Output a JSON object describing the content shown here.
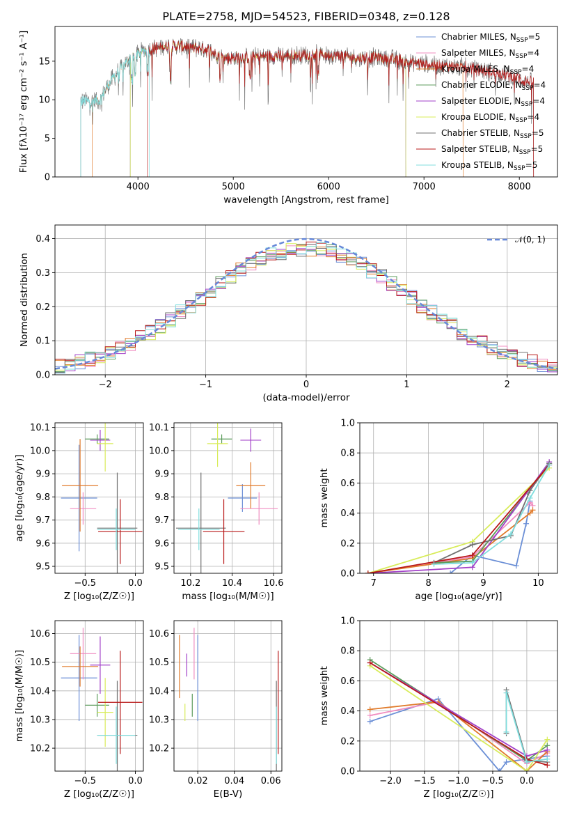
{
  "figure_title": "PLATE=2758, MJD=54523, FIBERID=0348, z=0.128",
  "colors": {
    "Chabrier MILES": "#6b8fd6",
    "Salpeter MILES": "#f08cc0",
    "Kroupa MILES": "#e07a2a",
    "Chabrier ELODIE": "#5c9c5c",
    "Salpeter ELODIE": "#a240c8",
    "Kroupa ELODIE": "#d8ec5a",
    "Chabrier STELIB": "#707070",
    "Salpeter STELIB": "#b81818",
    "Kroupa STELIB": "#80dede"
  },
  "legend_labels": [
    {
      "name": "Chabrier MILES",
      "n": "5"
    },
    {
      "name": "Salpeter MILES",
      "n": "4"
    },
    {
      "name": "Kroupa MILES",
      "n": "4"
    },
    {
      "name": "Chabrier ELODIE",
      "n": "4"
    },
    {
      "name": "Salpeter ELODIE",
      "n": "4"
    },
    {
      "name": "Kroupa ELODIE",
      "n": "4"
    },
    {
      "name": "Chabrier STELIB",
      "n": "5"
    },
    {
      "name": "Salpeter STELIB",
      "n": "5"
    },
    {
      "name": "Kroupa STELIB",
      "n": "5"
    }
  ],
  "chart_data": [
    {
      "id": "spectrum",
      "type": "line",
      "title": "PLATE=2758, MJD=54523, FIBERID=0348, z=0.128",
      "xlabel": "wavelength [Angstrom, rest frame]",
      "ylabel": "Flux [fλ10⁻¹⁷ erg cm⁻² s⁻¹ A⁻¹]",
      "xlim": [
        3130,
        8400
      ],
      "ylim": [
        0,
        19.5
      ],
      "xticks": [
        4000,
        5000,
        6000,
        7000,
        8000
      ],
      "yticks": [
        0,
        5,
        10,
        15
      ],
      "grid": false,
      "legend": "top-right",
      "continuum": [
        [
          3400,
          9.8
        ],
        [
          3600,
          9.9
        ],
        [
          3700,
          12.2
        ],
        [
          3900,
          15.2
        ],
        [
          4050,
          16.3
        ],
        [
          4300,
          17.0
        ],
        [
          4500,
          16.9
        ],
        [
          4700,
          16.6
        ],
        [
          4900,
          15.4
        ],
        [
          5100,
          15.5
        ],
        [
          5300,
          15.6
        ],
        [
          5500,
          15.7
        ],
        [
          5700,
          15.8
        ],
        [
          5900,
          15.9
        ],
        [
          6100,
          15.7
        ],
        [
          6300,
          15.4
        ],
        [
          6500,
          15.5
        ],
        [
          6700,
          15.2
        ],
        [
          6900,
          14.8
        ],
        [
          7100,
          14.5
        ],
        [
          7300,
          14.3
        ],
        [
          7500,
          14.1
        ],
        [
          7700,
          13.6
        ],
        [
          7900,
          13.1
        ],
        [
          8050,
          12.5
        ],
        [
          8150,
          12.2
        ]
      ],
      "drops": [
        [
          4100,
          0
        ],
        [
          3920,
          0
        ],
        [
          3520,
          0
        ],
        [
          6810,
          0
        ],
        [
          7410,
          0
        ]
      ],
      "series": [
        {
          "name": "Chabrier MILES",
          "x_range": [
            3530,
            7420
          ]
        },
        {
          "name": "Salpeter MILES",
          "x_range": [
            3530,
            7420
          ]
        },
        {
          "name": "Kroupa MILES",
          "x_range": [
            3520,
            7410
          ]
        },
        {
          "name": "Chabrier ELODIE",
          "x_range": [
            3920,
            6810
          ]
        },
        {
          "name": "Salpeter ELODIE",
          "x_range": [
            3920,
            6810
          ]
        },
        {
          "name": "Kroupa ELODIE",
          "x_range": [
            3920,
            6810
          ]
        },
        {
          "name": "Chabrier STELIB",
          "x_range": [
            3400,
            8150
          ]
        },
        {
          "name": "Salpeter STELIB",
          "x_range": [
            4100,
            8150
          ]
        },
        {
          "name": "Kroupa STELIB",
          "x_range": [
            3400,
            4120
          ]
        }
      ]
    },
    {
      "id": "residuals",
      "type": "line",
      "xlabel": "(data-model)/error",
      "ylabel": "Normed distribution",
      "xlim": [
        -2.5,
        2.5
      ],
      "ylim": [
        0,
        0.44
      ],
      "xticks": [
        -2,
        -1,
        0,
        1,
        2
      ],
      "yticks": [
        0.0,
        0.1,
        0.2,
        0.3,
        0.4
      ],
      "grid": true,
      "legend": "top-right",
      "reference": {
        "label": "𝒩(0, 1)",
        "mean": 0,
        "sigma": 1,
        "style": "dashed"
      },
      "bin_width": 0.1,
      "histograms": [
        "Chabrier MILES",
        "Salpeter MILES",
        "Kroupa MILES",
        "Chabrier ELODIE",
        "Salpeter ELODIE",
        "Kroupa ELODIE",
        "Chabrier STELIB",
        "Salpeter STELIB",
        "Kroupa STELIB"
      ]
    },
    {
      "id": "age_vs_Z",
      "type": "scatter",
      "xlabel": "Z [log₁₀(Z/Z☉)]",
      "ylabel": "age  [log₁₀(age/yr)]",
      "xlim": [
        -0.8,
        0.08
      ],
      "ylim": [
        9.47,
        10.12
      ],
      "xticks": [
        -0.5,
        0.0
      ],
      "yticks": [
        9.5,
        9.6,
        9.7,
        9.8,
        9.9,
        10.0,
        10.1
      ],
      "grid": true,
      "points": [
        {
          "series": "Chabrier MILES",
          "x": -0.56,
          "y": 9.795,
          "xerr": 0.18,
          "yerr": 0.23
        },
        {
          "series": "Salpeter MILES",
          "x": -0.52,
          "y": 9.75,
          "xerr": 0.13,
          "yerr": 0.07
        },
        {
          "series": "Kroupa MILES",
          "x": -0.55,
          "y": 9.85,
          "xerr": 0.18,
          "yerr": 0.2
        },
        {
          "series": "Chabrier ELODIE",
          "x": -0.38,
          "y": 10.05,
          "xerr": 0.12,
          "yerr": 0.02
        },
        {
          "series": "Salpeter ELODIE",
          "x": -0.35,
          "y": 10.045,
          "xerr": 0.1,
          "yerr": 0.045
        },
        {
          "series": "Kroupa ELODIE",
          "x": -0.3,
          "y": 10.03,
          "xerr": 0.08,
          "yerr": 0.12
        },
        {
          "series": "Chabrier STELIB",
          "x": -0.18,
          "y": 9.665,
          "xerr": 0.2,
          "yerr": 0.24
        },
        {
          "series": "Salpeter STELIB",
          "x": -0.15,
          "y": 9.65,
          "xerr": 0.22,
          "yerr": 0.14
        },
        {
          "series": "Kroupa STELIB",
          "x": -0.19,
          "y": 9.66,
          "xerr": 0.19,
          "yerr": 0.09
        }
      ]
    },
    {
      "id": "age_vs_mass",
      "type": "scatter",
      "xlabel": "mass [log₁₀(M/M☉)]",
      "ylabel": "",
      "xlim": [
        10.12,
        10.64
      ],
      "ylim": [
        9.47,
        10.12
      ],
      "xticks": [
        10.2,
        10.4,
        10.6
      ],
      "yticks": [
        9.5,
        9.6,
        9.7,
        9.8,
        9.9,
        10.0,
        10.1
      ],
      "grid": true,
      "points": [
        {
          "series": "Chabrier MILES",
          "x": 10.45,
          "y": 9.795,
          "xerr": 0.07,
          "yerr": 0.06
        },
        {
          "series": "Salpeter MILES",
          "x": 10.53,
          "y": 9.75,
          "xerr": 0.09,
          "yerr": 0.07
        },
        {
          "series": "Kroupa MILES",
          "x": 10.49,
          "y": 9.85,
          "xerr": 0.07,
          "yerr": 0.1
        },
        {
          "series": "Chabrier ELODIE",
          "x": 10.35,
          "y": 10.05,
          "xerr": 0.05,
          "yerr": 0.02
        },
        {
          "series": "Salpeter ELODIE",
          "x": 10.49,
          "y": 10.045,
          "xerr": 0.05,
          "yerr": 0.05
        },
        {
          "series": "Kroupa ELODIE",
          "x": 10.33,
          "y": 10.03,
          "xerr": 0.05,
          "yerr": 0.1
        },
        {
          "series": "Chabrier STELIB",
          "x": 10.25,
          "y": 9.665,
          "xerr": 0.12,
          "yerr": 0.24
        },
        {
          "series": "Salpeter STELIB",
          "x": 10.36,
          "y": 9.65,
          "xerr": 0.1,
          "yerr": 0.14
        },
        {
          "series": "Kroupa STELIB",
          "x": 10.24,
          "y": 9.66,
          "xerr": 0.1,
          "yerr": 0.09
        }
      ]
    },
    {
      "id": "mass_weight_vs_age",
      "type": "line",
      "xlabel": "age  [log₁₀(age/yr)]",
      "ylabel": "mass weight",
      "xlim": [
        6.75,
        10.35
      ],
      "ylim": [
        0,
        1.0
      ],
      "xticks": [
        7,
        8,
        9,
        10
      ],
      "yticks": [
        0.0,
        0.2,
        0.4,
        0.6,
        0.8,
        1.0
      ],
      "grid": true,
      "series": [
        {
          "name": "Chabrier MILES",
          "x": [
            8.4,
            8.8,
            9.6,
            9.78,
            9.85
          ],
          "y": [
            0.0,
            0.12,
            0.05,
            0.33,
            0.48
          ]
        },
        {
          "name": "Salpeter MILES",
          "x": [
            6.9,
            8.8,
            9.85,
            9.9
          ],
          "y": [
            0.0,
            0.11,
            0.47,
            0.45
          ]
        },
        {
          "name": "Kroupa MILES",
          "x": [
            6.9,
            8.8,
            9.85,
            9.9
          ],
          "y": [
            0.0,
            0.1,
            0.4,
            0.42
          ]
        },
        {
          "name": "Chabrier ELODIE",
          "x": [
            8.1,
            8.8,
            9.8,
            10.2
          ],
          "y": [
            0.07,
            0.08,
            0.54,
            0.73
          ]
        },
        {
          "name": "Salpeter ELODIE",
          "x": [
            6.9,
            8.8,
            10.2
          ],
          "y": [
            0.0,
            0.04,
            0.74
          ]
        },
        {
          "name": "Kroupa ELODIE",
          "x": [
            6.9,
            8.8,
            10.2
          ],
          "y": [
            0.0,
            0.21,
            0.7
          ]
        },
        {
          "name": "Chabrier STELIB",
          "x": [
            8.1,
            8.8,
            9.5,
            9.85,
            10.2
          ],
          "y": [
            0.07,
            0.19,
            0.25,
            0.55,
            0.73
          ]
        },
        {
          "name": "Salpeter STELIB",
          "x": [
            6.9,
            8.8,
            10.2
          ],
          "y": [
            0.0,
            0.12,
            0.72
          ]
        },
        {
          "name": "Kroupa STELIB",
          "x": [
            8.1,
            8.8,
            9.5,
            9.85,
            10.2
          ],
          "y": [
            0.06,
            0.07,
            0.26,
            0.5,
            0.72
          ]
        }
      ]
    },
    {
      "id": "mass_vs_Z",
      "type": "scatter",
      "xlabel": "Z [log₁₀(Z/Z☉)]",
      "ylabel": "mass [log₁₀(M/M☉)]",
      "xlim": [
        -0.8,
        0.08
      ],
      "ylim": [
        10.12,
        10.645
      ],
      "xticks": [
        -0.5,
        0.0
      ],
      "yticks": [
        10.2,
        10.3,
        10.4,
        10.5,
        10.6
      ],
      "grid": true,
      "points": [
        {
          "series": "Chabrier MILES",
          "x": -0.56,
          "y": 10.445,
          "xerr": 0.18,
          "yerr": 0.15
        },
        {
          "series": "Salpeter MILES",
          "x": -0.52,
          "y": 10.53,
          "xerr": 0.13,
          "yerr": 0.09
        },
        {
          "series": "Kroupa MILES",
          "x": -0.55,
          "y": 10.485,
          "xerr": 0.18,
          "yerr": 0.07
        },
        {
          "series": "Chabrier ELODIE",
          "x": -0.38,
          "y": 10.35,
          "xerr": 0.12,
          "yerr": 0.04
        },
        {
          "series": "Salpeter ELODIE",
          "x": -0.35,
          "y": 10.49,
          "xerr": 0.1,
          "yerr": 0.1
        },
        {
          "series": "Kroupa ELODIE",
          "x": -0.3,
          "y": 10.325,
          "xerr": 0.08,
          "yerr": 0.12
        },
        {
          "series": "Chabrier STELIB",
          "x": -0.18,
          "y": 10.245,
          "xerr": 0.2,
          "yerr": 0.19
        },
        {
          "series": "Salpeter STELIB",
          "x": -0.15,
          "y": 10.36,
          "xerr": 0.22,
          "yerr": 0.18
        },
        {
          "series": "Kroupa STELIB",
          "x": -0.19,
          "y": 10.245,
          "xerr": 0.19,
          "yerr": 0.1
        }
      ]
    },
    {
      "id": "mass_vs_ebv",
      "type": "scatter",
      "xlabel": "E(B-V)",
      "ylabel": "",
      "xlim": [
        0.007,
        0.066
      ],
      "ylim": [
        10.12,
        10.645
      ],
      "xticks": [
        0.02,
        0.04,
        0.06
      ],
      "yticks": [
        10.2,
        10.3,
        10.4,
        10.5,
        10.6
      ],
      "grid": true,
      "points": [
        {
          "series": "Chabrier MILES",
          "x": 0.02,
          "y": 10.445,
          "yerr": 0.15
        },
        {
          "series": "Salpeter MILES",
          "x": 0.018,
          "y": 10.53,
          "yerr": 0.09
        },
        {
          "series": "Kroupa MILES",
          "x": 0.01,
          "y": 10.485,
          "yerr": 0.11
        },
        {
          "series": "Chabrier ELODIE",
          "x": 0.017,
          "y": 10.35,
          "yerr": 0.04
        },
        {
          "series": "Salpeter ELODIE",
          "x": 0.014,
          "y": 10.49,
          "yerr": 0.04
        },
        {
          "series": "Kroupa ELODIE",
          "x": 0.013,
          "y": 10.325,
          "yerr": 0.03
        },
        {
          "series": "Chabrier STELIB",
          "x": 0.063,
          "y": 10.245,
          "yerr": 0.19
        },
        {
          "series": "Salpeter STELIB",
          "x": 0.064,
          "y": 10.36,
          "yerr": 0.18
        },
        {
          "series": "Kroupa STELIB",
          "x": 0.063,
          "y": 10.245,
          "yerr": 0.1
        }
      ]
    },
    {
      "id": "mass_weight_vs_Z",
      "type": "line",
      "xlabel": "Z [log₁₀(Z/Z☉)]",
      "ylabel": "mass weight",
      "xlim": [
        -2.45,
        0.45
      ],
      "ylim": [
        0,
        1.0
      ],
      "xticks": [
        -2.0,
        -1.5,
        -1.0,
        -0.5,
        0.0
      ],
      "yticks": [
        0.0,
        0.2,
        0.4,
        0.6,
        0.8,
        1.0
      ],
      "grid": true,
      "series": [
        {
          "name": "Chabrier MILES",
          "x": [
            -2.3,
            -1.3,
            -0.4,
            -0.3,
            0.0,
            0.3
          ],
          "y": [
            0.33,
            0.48,
            0.0,
            0.06,
            0.08,
            0.1
          ]
        },
        {
          "name": "Salpeter MILES",
          "x": [
            -2.3,
            -1.3,
            0.0,
            0.3
          ],
          "y": [
            0.37,
            0.46,
            0.05,
            0.12
          ]
        },
        {
          "name": "Kroupa MILES",
          "x": [
            -2.3,
            -1.3,
            0.0,
            0.3
          ],
          "y": [
            0.41,
            0.46,
            0.0,
            0.13
          ]
        },
        {
          "name": "Chabrier ELODIE",
          "x": [
            -2.3,
            0.0,
            0.3
          ],
          "y": [
            0.74,
            0.07,
            0.17
          ]
        },
        {
          "name": "Salpeter ELODIE",
          "x": [
            -2.3,
            0.0,
            0.3
          ],
          "y": [
            0.72,
            0.1,
            0.14
          ]
        },
        {
          "name": "Kroupa ELODIE",
          "x": [
            -2.3,
            0.0,
            0.3
          ],
          "y": [
            0.7,
            0.0,
            0.21
          ]
        },
        {
          "name": "Chabrier STELIB",
          "x": [
            -0.3,
            -0.3,
            0.0,
            0.3
          ],
          "y": [
            0.25,
            0.54,
            0.07,
            0.06
          ]
        },
        {
          "name": "Salpeter STELIB",
          "x": [
            -2.3,
            0.0,
            0.3
          ],
          "y": [
            0.72,
            0.08,
            0.04
          ]
        },
        {
          "name": "Kroupa STELIB",
          "x": [
            -0.3,
            -0.3,
            0.0,
            0.3
          ],
          "y": [
            0.26,
            0.52,
            0.06,
            0.08
          ]
        }
      ]
    }
  ]
}
